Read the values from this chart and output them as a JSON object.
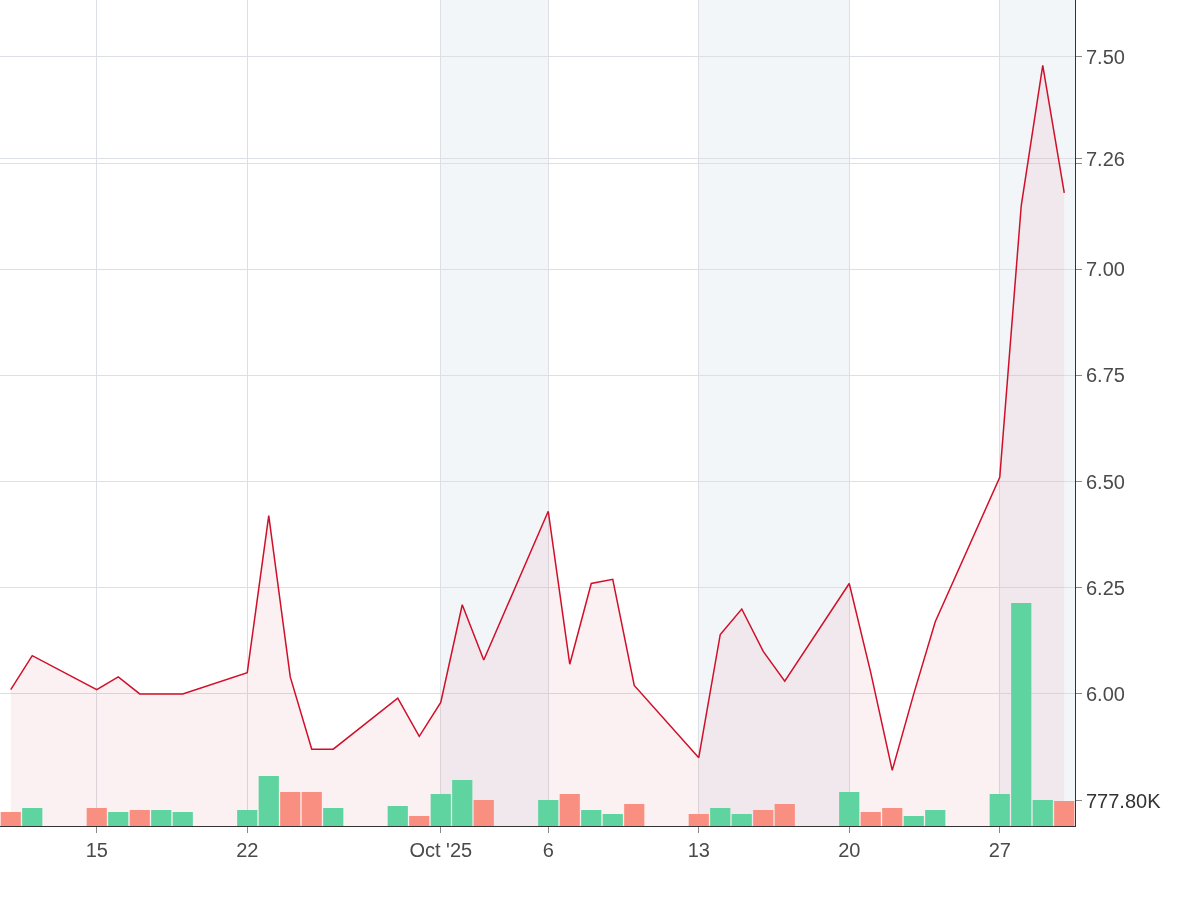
{
  "chart_data": {
    "type": "area",
    "x": [
      "2025-09-11",
      "2025-09-12",
      "2025-09-15",
      "2025-09-16",
      "2025-09-17",
      "2025-09-18",
      "2025-09-19",
      "2025-09-22",
      "2025-09-23",
      "2025-09-24",
      "2025-09-25",
      "2025-09-26",
      "2025-09-29",
      "2025-09-30",
      "2025-10-01",
      "2025-10-02",
      "2025-10-03",
      "2025-10-06",
      "2025-10-07",
      "2025-10-08",
      "2025-10-09",
      "2025-10-10",
      "2025-10-13",
      "2025-10-14",
      "2025-10-15",
      "2025-10-16",
      "2025-10-17",
      "2025-10-20",
      "2025-10-21",
      "2025-10-22",
      "2025-10-23",
      "2025-10-24",
      "2025-10-27",
      "2025-10-28",
      "2025-10-29",
      "2025-10-30"
    ],
    "series": [
      {
        "color": "#d0102a",
        "values": [
          6.01,
          6.09,
          6.01,
          6.04,
          6.0,
          6.0,
          6.0,
          6.05,
          6.42,
          6.04,
          5.87,
          5.87,
          5.99,
          5.9,
          5.98,
          6.21,
          6.08,
          6.43,
          6.07,
          6.26,
          6.27,
          6.02,
          5.85,
          6.14,
          6.2,
          6.1,
          6.03,
          6.26,
          6.05,
          5.82,
          6.0,
          6.17,
          6.51,
          7.15,
          7.48,
          7.18
        ]
      },
      {
        "type": "bar",
        "axis": "y2",
        "values": [
          435,
          560,
          560,
          435,
          498,
          498,
          435,
          498,
          1555,
          1057,
          1057,
          560,
          622,
          311,
          995,
          1431,
          809,
          809,
          995,
          498,
          373,
          684,
          373,
          560,
          373,
          498,
          684,
          1057,
          435,
          560,
          311,
          498,
          995,
          6935,
          809,
          777.8
        ],
        "colors": [
          "#f88f80",
          "#5fd3a0",
          "#f88f80",
          "#5fd3a0",
          "#f88f80",
          "#5fd3a0",
          "#5fd3a0",
          "#5fd3a0",
          "#5fd3a0",
          "#f88f80",
          "#f88f80",
          "#5fd3a0",
          "#5fd3a0",
          "#f88f80",
          "#5fd3a0",
          "#5fd3a0",
          "#f88f80",
          "#5fd3a0",
          "#f88f80",
          "#5fd3a0",
          "#5fd3a0",
          "#f88f80",
          "#f88f80",
          "#5fd3a0",
          "#5fd3a0",
          "#f88f80",
          "#f88f80",
          "#5fd3a0",
          "#f88f80",
          "#f88f80",
          "#5fd3a0",
          "#5fd3a0",
          "#5fd3a0",
          "#5fd3a0",
          "#5fd3a0",
          "#f88f80"
        ]
      }
    ],
    "xlim": [
      "2025-09-10T12:00",
      "2025-10-30T12:00"
    ],
    "xticks": [
      {
        "value": "2025-09-15",
        "label": "15"
      },
      {
        "value": "2025-09-22",
        "label": "22"
      },
      {
        "value": "2025-10-01",
        "label": "Oct '25"
      },
      {
        "value": "2025-10-06",
        "label": "6"
      },
      {
        "value": "2025-10-13",
        "label": "13"
      },
      {
        "value": "2025-10-20",
        "label": "20"
      },
      {
        "value": "2025-10-27",
        "label": "27"
      }
    ],
    "ylim": [
      5.689,
      7.634
    ],
    "yticks": [
      {
        "value": 6.0,
        "label": "6.00"
      },
      {
        "value": 6.25,
        "label": "6.25"
      },
      {
        "value": 6.5,
        "label": "6.50"
      },
      {
        "value": 6.75,
        "label": "6.75"
      },
      {
        "value": 7.0,
        "label": "7.00"
      },
      {
        "value": 7.25,
        "label": null
      },
      {
        "value": 7.26,
        "label": "7.26"
      },
      {
        "value": 7.5,
        "label": "7.50"
      }
    ],
    "y2lim": [
      0,
      25690
    ],
    "y2ticks": [
      {
        "value": 777.8,
        "label": "777.80K"
      }
    ],
    "bands": [
      {
        "axis": "x",
        "from": "2025-10-01",
        "to": "2025-10-06",
        "color": "#f3f6f9"
      },
      {
        "axis": "x",
        "from": "2025-10-13",
        "to": "2025-10-20",
        "color": "#f3f6f9"
      },
      {
        "axis": "x",
        "from": "2025-10-27",
        "to": "2025-10-30T12:00",
        "color": "#f3f6f9"
      }
    ],
    "grid": true,
    "marker": "none",
    "line_style": "solid"
  }
}
